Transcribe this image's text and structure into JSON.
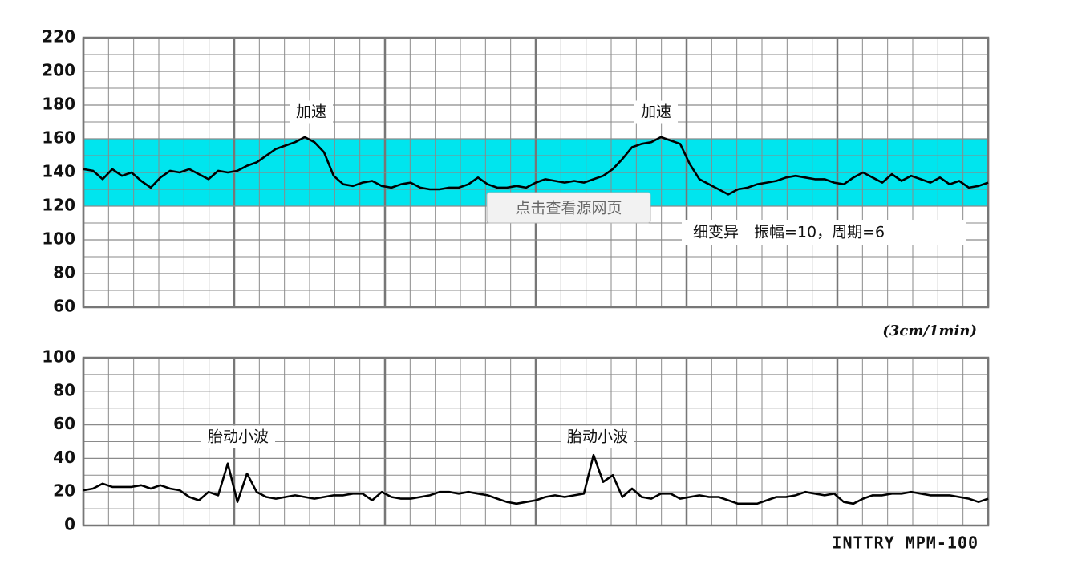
{
  "chart_data": [
    {
      "type": "line",
      "color": "#000000",
      "values": [
        142,
        141,
        136,
        142,
        138,
        140,
        135,
        131,
        137,
        141,
        140,
        142,
        139,
        136,
        141,
        140,
        141,
        144,
        146,
        150,
        154,
        156,
        158,
        161,
        158,
        152,
        138,
        133,
        132,
        134,
        135,
        132,
        131,
        133,
        134,
        131,
        130,
        130,
        131,
        131,
        133,
        137,
        133,
        131,
        131,
        132,
        131,
        134,
        136,
        135,
        134,
        135,
        134,
        136,
        138,
        142,
        148,
        155,
        157,
        158,
        161,
        159,
        157,
        145,
        136,
        133,
        130,
        127,
        130,
        131,
        133,
        134,
        135,
        137,
        138,
        137,
        136,
        136,
        134,
        133,
        137,
        140,
        137,
        134,
        139,
        135,
        138,
        136,
        134,
        137,
        133,
        135,
        131,
        132,
        134
      ],
      "ylim": [
        60,
        220
      ],
      "yticks": [
        60,
        80,
        100,
        120,
        140,
        160,
        180,
        200,
        220
      ],
      "grid": true,
      "band": [
        120,
        160
      ],
      "band_color": "#00e5ee",
      "annotations": [
        "加速",
        "加速",
        "细变异　振幅=10，周期=6"
      ],
      "note": "(3cm/1min)"
    },
    {
      "type": "line",
      "color": "#000000",
      "values": [
        21,
        22,
        25,
        23,
        23,
        23,
        24,
        22,
        24,
        22,
        21,
        17,
        15,
        20,
        18,
        37,
        14,
        31,
        20,
        17,
        16,
        17,
        18,
        17,
        16,
        17,
        18,
        18,
        19,
        19,
        15,
        20,
        17,
        16,
        16,
        17,
        18,
        20,
        20,
        19,
        20,
        19,
        18,
        16,
        14,
        13,
        14,
        15,
        17,
        18,
        17,
        18,
        19,
        42,
        26,
        30,
        17,
        22,
        17,
        16,
        19,
        19,
        16,
        17,
        18,
        17,
        17,
        15,
        13,
        13,
        13,
        15,
        17,
        17,
        18,
        20,
        19,
        18,
        19,
        14,
        13,
        16,
        18,
        18,
        19,
        19,
        20,
        19,
        18,
        18,
        18,
        17,
        16,
        14,
        16
      ],
      "ylim": [
        0,
        100
      ],
      "yticks": [
        0,
        20,
        40,
        60,
        80,
        100
      ],
      "grid": true,
      "annotations": [
        "胎动小波",
        "胎动小波"
      ],
      "note": "INTTRY MPM-100"
    }
  ],
  "button": "点击查看源网页"
}
